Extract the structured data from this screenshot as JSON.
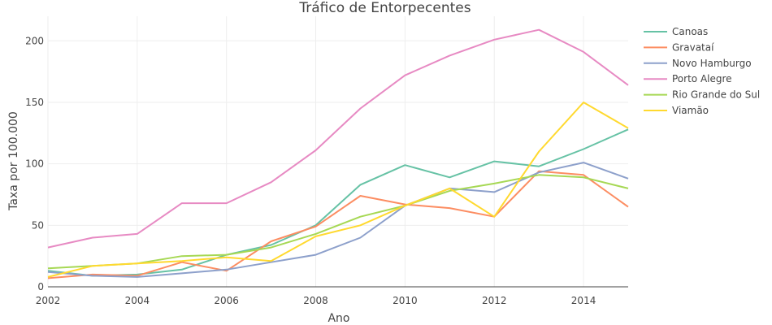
{
  "chart_data": {
    "type": "line",
    "title": "Tráfico de Entorpecentes",
    "xlabel": "Ano",
    "ylabel": "Taxa por 100.000",
    "x": [
      2002,
      2003,
      2004,
      2005,
      2006,
      2007,
      2008,
      2009,
      2010,
      2011,
      2012,
      2013,
      2014,
      2015
    ],
    "xlim": [
      2002,
      2015
    ],
    "ylim": [
      0,
      220
    ],
    "xticks": [
      2002,
      2004,
      2006,
      2008,
      2010,
      2012,
      2014
    ],
    "yticks": [
      0,
      50,
      100,
      150,
      200
    ],
    "xtick_labels": [
      "2002",
      "2004",
      "2006",
      "2008",
      "2010",
      "2012",
      "2014"
    ],
    "ytick_labels": [
      "0",
      "50",
      "100",
      "150",
      "200"
    ],
    "grid": true,
    "legend_position": "right",
    "series": [
      {
        "name": "Canoas",
        "color": "#66c2a5",
        "values": [
          13,
          9,
          10,
          14,
          26,
          34,
          50,
          83,
          99,
          89,
          102,
          98,
          112,
          128
        ]
      },
      {
        "name": "Gravataí",
        "color": "#fc8d62",
        "values": [
          7,
          10,
          9,
          20,
          13,
          37,
          49,
          74,
          67,
          64,
          57,
          94,
          91,
          65
        ]
      },
      {
        "name": "Novo Hamburgo",
        "color": "#8da0cb",
        "values": [
          12,
          9,
          8,
          11,
          14,
          20,
          26,
          40,
          66,
          80,
          77,
          93,
          101,
          88
        ]
      },
      {
        "name": "Porto Alegre",
        "color": "#e78ac3",
        "values": [
          32,
          40,
          43,
          68,
          68,
          85,
          111,
          145,
          172,
          188,
          201,
          209,
          191,
          164
        ]
      },
      {
        "name": "Rio Grande do Sul",
        "color": "#a6d854",
        "values": [
          15,
          17,
          19,
          25,
          26,
          32,
          43,
          57,
          66,
          78,
          84,
          91,
          89,
          80
        ]
      },
      {
        "name": "Viamão",
        "color": "#ffd92f",
        "values": [
          8,
          17,
          19,
          21,
          24,
          21,
          41,
          50,
          66,
          80,
          57,
          110,
          150,
          129
        ]
      }
    ]
  }
}
